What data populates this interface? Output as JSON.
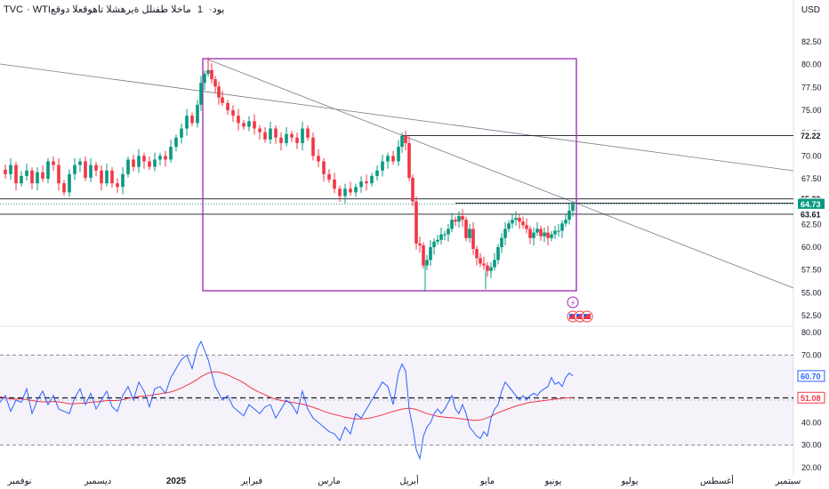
{
  "header": {
    "symbol": "TVC",
    "ticker": "WTIيود",
    "interval": "1",
    "description": "ماخلا طفنلل ةيرهشلا تاهوقعلا دوقع"
  },
  "currency": "USD",
  "colors": {
    "up": "#089981",
    "down": "#f23645",
    "rsi": "#2962ff",
    "rsi_ma": "#f23645",
    "box": "#9c27b0",
    "badge": "#131722",
    "price_badge": "#089981",
    "rsi_badge": "#2962ff",
    "rsi_ma_badge": "#f23645"
  },
  "chart_data": [
    {
      "type": "candlestick",
      "y_axis_ticks": [
        "82.50",
        "80.00",
        "77.50",
        "75.00",
        "72.50",
        "70.00",
        "67.50",
        "65.00",
        "62.50",
        "60.00",
        "57.50",
        "55.00",
        "52.50"
      ],
      "ylim": [
        51.5,
        85.5
      ],
      "price_labels": [
        {
          "value": "72.22",
          "kind": "level"
        },
        {
          "value": "65.29",
          "kind": "level"
        },
        {
          "value": "64.83",
          "kind": "level"
        },
        {
          "value": "64.73",
          "kind": "last"
        },
        {
          "value": "63.61",
          "kind": "level"
        }
      ],
      "horizontal_levels": [
        72.22,
        65.29,
        64.83,
        63.61
      ],
      "close_path": [
        [
          0,
          68.5
        ],
        [
          6,
          68
        ],
        [
          12,
          69
        ],
        [
          18,
          67
        ],
        [
          24,
          67.8
        ],
        [
          30,
          68.4
        ],
        [
          36,
          67
        ],
        [
          42,
          68.2
        ],
        [
          48,
          67.5
        ],
        [
          54,
          69.4
        ],
        [
          60,
          69
        ],
        [
          66,
          67
        ],
        [
          72,
          66
        ],
        [
          78,
          68
        ],
        [
          84,
          69
        ],
        [
          90,
          69.4
        ],
        [
          96,
          67.6
        ],
        [
          102,
          69
        ],
        [
          108,
          68.4
        ],
        [
          114,
          67
        ],
        [
          120,
          68.4
        ],
        [
          126,
          67
        ],
        [
          132,
          66.6
        ],
        [
          138,
          68
        ],
        [
          144,
          69.6
        ],
        [
          150,
          68.8
        ],
        [
          156,
          70
        ],
        [
          162,
          69.4
        ],
        [
          168,
          68.8
        ],
        [
          174,
          69.6
        ],
        [
          180,
          70
        ],
        [
          186,
          69.6
        ],
        [
          192,
          71
        ],
        [
          198,
          72
        ],
        [
          204,
          73
        ],
        [
          210,
          74.4
        ],
        [
          216,
          73.6
        ],
        [
          222,
          75.6
        ],
        [
          226,
          78
        ],
        [
          230,
          79
        ],
        [
          234,
          79.4
        ],
        [
          238,
          78.4
        ],
        [
          242,
          77.6
        ],
        [
          246,
          76.4
        ],
        [
          250,
          75.8
        ],
        [
          256,
          75
        ],
        [
          262,
          74.4
        ],
        [
          268,
          73.6
        ],
        [
          274,
          73.2
        ],
        [
          280,
          73.8
        ],
        [
          286,
          73
        ],
        [
          292,
          72.6
        ],
        [
          298,
          71.8
        ],
        [
          304,
          73
        ],
        [
          310,
          72
        ],
        [
          316,
          71.4
        ],
        [
          322,
          72.4
        ],
        [
          328,
          72
        ],
        [
          334,
          71.4
        ],
        [
          340,
          73
        ],
        [
          346,
          72
        ],
        [
          352,
          70
        ],
        [
          358,
          69.4
        ],
        [
          364,
          68
        ],
        [
          370,
          67.4
        ],
        [
          376,
          66.4
        ],
        [
          382,
          65.6
        ],
        [
          388,
          66.4
        ],
        [
          394,
          66
        ],
        [
          400,
          66.6
        ],
        [
          406,
          67.2
        ],
        [
          412,
          67
        ],
        [
          418,
          67.8
        ],
        [
          424,
          68.4
        ],
        [
          430,
          69.4
        ],
        [
          436,
          70
        ],
        [
          442,
          69.4
        ],
        [
          448,
          71
        ],
        [
          452,
          72.2
        ],
        [
          456,
          71.4
        ],
        [
          460,
          67.6
        ],
        [
          464,
          65
        ],
        [
          468,
          60.4
        ],
        [
          472,
          60.2
        ],
        [
          476,
          58
        ],
        [
          480,
          58.6
        ],
        [
          484,
          60
        ],
        [
          488,
          60.6
        ],
        [
          492,
          60.8
        ],
        [
          496,
          61.4
        ],
        [
          500,
          61.4
        ],
        [
          504,
          62
        ],
        [
          508,
          63
        ],
        [
          512,
          62.8
        ],
        [
          516,
          63.4
        ],
        [
          520,
          63
        ],
        [
          524,
          61
        ],
        [
          528,
          62
        ],
        [
          532,
          59.8
        ],
        [
          536,
          58.8
        ],
        [
          540,
          58.2
        ],
        [
          544,
          58
        ],
        [
          548,
          57.4
        ],
        [
          552,
          57.8
        ],
        [
          556,
          58.6
        ],
        [
          560,
          60
        ],
        [
          564,
          61
        ],
        [
          568,
          62
        ],
        [
          572,
          62.6
        ],
        [
          576,
          63
        ],
        [
          580,
          63.2
        ],
        [
          584,
          62.8
        ],
        [
          588,
          62.4
        ],
        [
          592,
          62
        ],
        [
          596,
          61
        ],
        [
          600,
          61.6
        ],
        [
          604,
          62
        ],
        [
          608,
          61.2
        ],
        [
          612,
          61.6
        ],
        [
          616,
          61
        ],
        [
          620,
          61.4
        ],
        [
          624,
          61.8
        ],
        [
          628,
          61.8
        ],
        [
          632,
          62.6
        ],
        [
          636,
          63
        ],
        [
          640,
          64
        ],
        [
          644,
          64.73
        ]
      ]
    },
    {
      "type": "line",
      "name": "RSI",
      "y_axis_ticks": [
        "80.00",
        "70.00",
        "60.00",
        "50.00",
        "40.00",
        "30.00",
        "20.00"
      ],
      "ylim": [
        18,
        84
      ],
      "bands": {
        "upper": 70,
        "middle": 50,
        "lower": 30
      },
      "reference_line": 51,
      "last_values": {
        "rsi": "60.70",
        "rsi_ma": "51.08"
      },
      "x": [
        0,
        6,
        12,
        18,
        24,
        30,
        36,
        42,
        48,
        54,
        60,
        66,
        72,
        78,
        84,
        90,
        96,
        102,
        108,
        114,
        120,
        126,
        132,
        138,
        144,
        150,
        156,
        162,
        168,
        174,
        180,
        186,
        192,
        198,
        204,
        210,
        216,
        222,
        226,
        230,
        234,
        238,
        242,
        246,
        250,
        256,
        262,
        268,
        274,
        280,
        286,
        292,
        298,
        304,
        310,
        316,
        322,
        328,
        334,
        340,
        346,
        352,
        358,
        364,
        370,
        376,
        382,
        388,
        394,
        400,
        406,
        412,
        418,
        424,
        430,
        436,
        442,
        448,
        452,
        456,
        460,
        464,
        468,
        472,
        476,
        480,
        484,
        488,
        492,
        496,
        500,
        504,
        508,
        512,
        516,
        520,
        524,
        528,
        532,
        536,
        540,
        544,
        548,
        552,
        556,
        560,
        564,
        568,
        572,
        576,
        580,
        584,
        588,
        592,
        596,
        600,
        604,
        608,
        612,
        616,
        620,
        624,
        628,
        632,
        636,
        640,
        644
      ],
      "rsi": [
        49,
        52,
        45,
        50,
        49,
        55,
        44,
        50,
        54,
        48,
        52,
        46,
        45,
        44,
        51,
        55,
        48,
        53,
        46,
        50,
        54,
        47,
        45,
        52,
        56,
        50,
        58,
        54,
        47,
        55,
        56,
        53,
        60,
        64,
        68,
        70,
        64,
        73,
        76,
        72,
        68,
        62,
        56,
        53,
        50,
        52,
        47,
        45,
        43,
        48,
        46,
        44,
        47,
        48,
        42,
        46,
        50,
        48,
        44,
        54,
        46,
        42,
        40,
        38,
        36,
        35,
        32,
        38,
        35,
        44,
        42,
        46,
        50,
        54,
        58,
        56,
        48,
        62,
        66,
        63,
        46,
        38,
        28,
        24,
        34,
        38,
        40,
        44,
        46,
        44,
        46,
        49,
        52,
        46,
        44,
        48,
        44,
        38,
        36,
        34,
        33,
        36,
        34,
        42,
        46,
        48,
        54,
        58,
        56,
        54,
        52,
        50,
        52,
        50,
        52,
        53,
        52,
        54,
        55,
        56,
        60,
        57,
        58,
        56,
        60,
        62,
        60.7
      ],
      "rsi_ma": [
        51.5,
        51,
        50.5,
        50.5,
        50.6,
        50.2,
        49.8,
        49.4,
        49.2,
        49.2,
        49.4,
        49.2,
        48.8,
        48.4,
        48.4,
        48.6,
        48.6,
        49,
        49.2,
        49.4,
        49.8,
        49.8,
        49.8,
        50.2,
        50.8,
        51.2,
        51.6,
        51.8,
        52,
        52.4,
        52.8,
        53.2,
        53.6,
        54.4,
        55.4,
        56.6,
        57.8,
        59.2,
        60.4,
        61.2,
        62,
        62.4,
        62.6,
        62.4,
        62,
        61.2,
        60,
        59,
        57.6,
        56,
        54.6,
        53.4,
        52.4,
        51.2,
        50.4,
        49.8,
        49.4,
        49,
        48.6,
        48.2,
        47.6,
        46.8,
        46,
        45,
        44.2,
        43.6,
        43,
        42.4,
        42,
        41.6,
        41.6,
        41.8,
        42.2,
        42.8,
        43.4,
        44.2,
        45,
        45.6,
        46,
        46.2,
        46.4,
        46.2,
        45.8,
        45.2,
        44.6,
        44,
        43.6,
        43.2,
        42.8,
        42.6,
        42.4,
        42.2,
        42.2,
        42,
        41.8,
        41.6,
        41.4,
        41.2,
        41,
        41,
        41.2,
        41.6,
        42.2,
        42.8,
        43.6,
        44.4,
        45,
        45.6,
        46.2,
        46.8,
        47.4,
        47.8,
        48.2,
        48.6,
        49,
        49.2,
        49.4,
        49.6,
        49.8,
        50,
        50.2,
        50.4,
        50.6,
        50.8,
        51,
        51,
        51.08
      ]
    }
  ],
  "x_axis_labels": [
    "نوفمبر",
    "ديسمبر",
    "2025",
    "فبراير",
    "مارس",
    "أبريل",
    "مايو",
    "يونيو",
    "يوليو",
    "أغسطس",
    "سبتمبر"
  ],
  "events": {
    "lightning_icon": "lightning-icon",
    "flag_icon": "us-flag-icon"
  }
}
